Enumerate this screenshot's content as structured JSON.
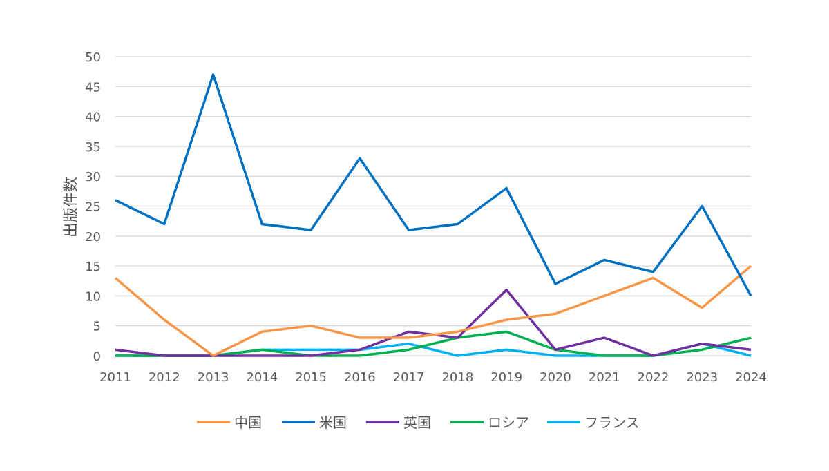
{
  "chart_data": {
    "type": "line",
    "title": "",
    "xlabel": "",
    "ylabel": "出版件数",
    "ylim": [
      0,
      50
    ],
    "yticks": [
      0,
      5,
      10,
      15,
      20,
      25,
      30,
      35,
      40,
      45,
      50
    ],
    "grid": true,
    "legend_position": "bottom",
    "categories": [
      "2011",
      "2012",
      "2013",
      "2014",
      "2015",
      "2016",
      "2017",
      "2018",
      "2019",
      "2020",
      "2021",
      "2022",
      "2023",
      "2024"
    ],
    "series": [
      {
        "name": "中国",
        "color": "#F79646",
        "values": [
          13,
          6,
          0,
          4,
          5,
          3,
          3,
          4,
          6,
          7,
          10,
          13,
          8,
          15
        ]
      },
      {
        "name": "米国",
        "color": "#0070C0",
        "values": [
          26,
          22,
          47,
          22,
          21,
          33,
          21,
          22,
          28,
          12,
          16,
          14,
          25,
          10
        ]
      },
      {
        "name": "英国",
        "color": "#7030A0",
        "values": [
          1,
          0,
          0,
          0,
          0,
          1,
          4,
          3,
          11,
          1,
          3,
          0,
          2,
          1
        ]
      },
      {
        "name": "ロシア",
        "color": "#00B050",
        "values": [
          0,
          0,
          0,
          1,
          0,
          0,
          1,
          3,
          4,
          1,
          0,
          0,
          1,
          3
        ]
      },
      {
        "name": "フランス",
        "color": "#00B0F0",
        "values": [
          0,
          0,
          0,
          1,
          1,
          1,
          2,
          0,
          1,
          0,
          0,
          0,
          2,
          0
        ]
      }
    ]
  }
}
